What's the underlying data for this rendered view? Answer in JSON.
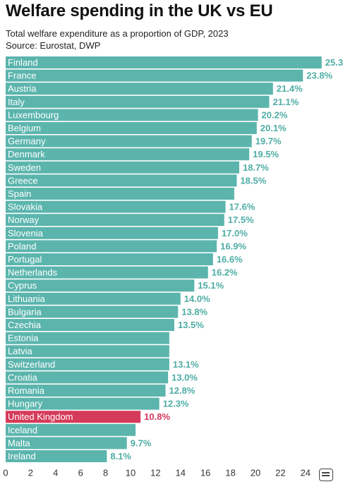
{
  "chart_data": {
    "type": "bar",
    "orientation": "horizontal",
    "title": "Welfare spending in the UK vs EU",
    "subtitle": "Total welfare expenditure as a proportion of GDP, 2023",
    "source": "Source: Eurostat, DWP",
    "categories": [
      "Finland",
      "France",
      "Austria",
      "Italy",
      "Luxembourg",
      "Belgium",
      "Germany",
      "Denmark",
      "Sweden",
      "Greece",
      "Spain",
      "Slovakia",
      "Norway",
      "Slovenia",
      "Poland",
      "Portugal",
      "Netherlands",
      "Cyprus",
      "Lithuania",
      "Bulgaria",
      "Czechia",
      "Estonia",
      "Latvia",
      "Switzerland",
      "Croatia",
      "Romania",
      "Hungary",
      "United Kingdom",
      "Iceland",
      "Malta",
      "Ireland"
    ],
    "values": [
      25.3,
      23.8,
      21.4,
      21.1,
      20.2,
      20.1,
      19.7,
      19.5,
      18.7,
      18.5,
      18.3,
      17.6,
      17.5,
      17.0,
      16.9,
      16.6,
      16.2,
      15.1,
      14.0,
      13.8,
      13.5,
      13.1,
      13.1,
      13.1,
      13.0,
      12.8,
      12.3,
      10.8,
      10.4,
      9.7,
      8.1
    ],
    "value_labels": [
      "25.3",
      "23.8%",
      "21.4%",
      "21.1%",
      "20.2%",
      "20.1%",
      "19.7%",
      "19.5%",
      "18.7%",
      "18.5%",
      "",
      "17.6%",
      "17.5%",
      "17.0%",
      "16.9%",
      "16.6%",
      "16.2%",
      "15.1%",
      "14.0%",
      "13.8%",
      "13.5%",
      "",
      "",
      "13.1%",
      "13.0%",
      "12.8%",
      "12.3%",
      "10.8%",
      "",
      "9.7%",
      "8.1%"
    ],
    "highlight": "United Kingdom",
    "xlim": [
      0,
      25
    ],
    "xticks": [
      0,
      2,
      4,
      6,
      8,
      10,
      12,
      14,
      16,
      18,
      20,
      22,
      24
    ],
    "xtick_labels": [
      "0",
      "2",
      "4",
      "6",
      "8",
      "10",
      "12",
      "14",
      "16",
      "18",
      "20",
      "22",
      "24"
    ],
    "colors": {
      "bar": "#5bb5ad",
      "highlight": "#d63a5a",
      "value_text": "#4fada5",
      "highlight_text": "#d63a5a"
    },
    "grid": false,
    "xlabel": "",
    "ylabel": ""
  },
  "badge_icon": "caption-icon"
}
